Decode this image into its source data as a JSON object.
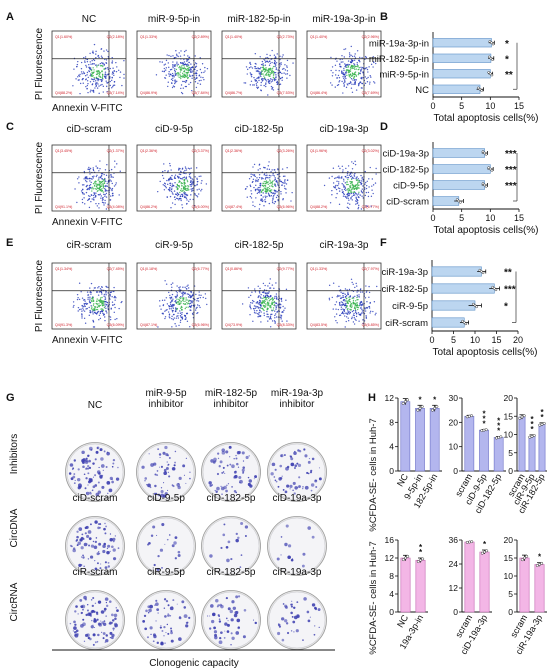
{
  "panels": {
    "A": {
      "letter": "A",
      "ylabel": "PI Fluorescence",
      "xlabel": "Annexin V-FITC",
      "plots": [
        {
          "title": "NC",
          "q": [
            "Q1(1.60%)",
            "Q2(2.18%)",
            "Q4(88.2%)",
            "Q3(7.14%)"
          ]
        },
        {
          "title": "miR-9-5p-in",
          "q": [
            "Q1(1.33%)",
            "Q2(2.89%)",
            "Q4(86.9%)",
            "Q3(7.84%)"
          ]
        },
        {
          "title": "miR-182-5p-in",
          "q": [
            "Q1(1.40%)",
            "Q2(2.73%)",
            "Q4(86.7%)",
            "Q3(7.53%)"
          ]
        },
        {
          "title": "miR-19a-3p-in",
          "q": [
            "Q1(1.40%)",
            "Q2(2.96%)",
            "Q4(86.4%)",
            "Q3(7.69%)"
          ]
        }
      ]
    },
    "C": {
      "letter": "C",
      "ylabel": "PI Fluorescence",
      "xlabel": "Annexin V-FITC",
      "plots": [
        {
          "title": "ciD-scram",
          "q": [
            "Q1(3.45%)",
            "Q2(1.37%)",
            "Q4(91.1%)",
            "Q3(4.08%)"
          ]
        },
        {
          "title": "ciD-9-5p",
          "q": [
            "Q1(2.36%)",
            "Q2(3.37%)",
            "Q4(86.2%)",
            "Q3(6.00%)"
          ]
        },
        {
          "title": "ciD-182-5p",
          "q": [
            "Q1(2.36%)",
            "Q2(3.26%)",
            "Q4(87.4%)",
            "Q3(6.96%)"
          ]
        },
        {
          "title": "ciD-19a-3p",
          "q": [
            "Q1(1.96%)",
            "Q2(3.02%)",
            "Q4(88.2%)",
            "Q3(6.77%)"
          ]
        }
      ]
    },
    "E": {
      "letter": "E",
      "ylabel": "PI Fluorescence",
      "xlabel": "Annexin V-FITC",
      "plots": [
        {
          "title": "ciR-scram",
          "q": [
            "Q1(1.34%)",
            "Q2(7.45%)",
            "Q4(91.3%)",
            "Q3(6.09%)"
          ]
        },
        {
          "title": "ciR-9-5p",
          "q": [
            "Q1(0.18%)",
            "Q2(6.77%)",
            "Q4(87.1%)",
            "Q3(6.96%)"
          ]
        },
        {
          "title": "ciR-182-5p",
          "q": [
            "Q1(0.86%)",
            "Q2(9.77%)",
            "Q4(73.9%)",
            "Q3(8.33%)"
          ]
        },
        {
          "title": "ciR-19a-3p",
          "q": [
            "Q1(1.33%)",
            "Q2(7.97%)",
            "Q4(83.5%)",
            "Q3(6.85%)"
          ]
        }
      ]
    },
    "G": {
      "letter": "G",
      "caption": "Clonogenic capacity",
      "rows": [
        "Inhibitors",
        "CircDNA",
        "CircRNA"
      ],
      "wells": [
        [
          "NC",
          "miR-9-5p\ninhibitor",
          "miR-182-5p\ninhibitor",
          "miR-19a-3p\ninhibitor"
        ],
        [
          "ciD-scram",
          "ciD-9-5p",
          "ciD-182-5p",
          "ciD-19a-3p"
        ],
        [
          "ciR-scram",
          "ciR-9-5p",
          "ciR-182-5p",
          "ciR-19a-3p"
        ]
      ],
      "density": [
        [
          0.7,
          0.45,
          0.5,
          0.45
        ],
        [
          0.6,
          0.15,
          0.12,
          0.1
        ],
        [
          0.8,
          0.45,
          0.4,
          0.3
        ]
      ]
    },
    "H": {
      "letter": "H",
      "ylabel_top": "%CFDA-SE- cells in Huh-7",
      "ylabel_bottom": "%CFDA-SE- cells in Huh-7"
    }
  },
  "colors": {
    "bar_blue": "#bcd6f0",
    "bar_blue_edge": "#5b8fc7",
    "purple": "#b3b6ee",
    "purple_edge": "#6d70c6",
    "pink": "#f3b6e6",
    "pink_edge": "#c46ab3",
    "flow_green": "#33b24a",
    "flow_blue": "#2236b8",
    "colony": "#3d3fb0"
  },
  "chart_data": [
    {
      "panel": "B",
      "type": "bar",
      "orientation": "horizontal",
      "categories": [
        "miR-19a-3p-in",
        "miR-182-5p-in",
        "miR-9-5p-in",
        "NC"
      ],
      "values": [
        10.2,
        10.1,
        10.0,
        8.2
      ],
      "errors": [
        0.5,
        0.5,
        0.4,
        0.6
      ],
      "significance": [
        "*",
        "*",
        "**",
        ""
      ],
      "xlabel": "Total apoptosis cells(%)",
      "xlim": [
        0,
        15
      ],
      "xticks": [
        0,
        5,
        10,
        15
      ]
    },
    {
      "panel": "D",
      "type": "bar",
      "orientation": "horizontal",
      "categories": [
        "ciD-19a-3p",
        "ciD-182-5p",
        "ciD-9-5p",
        "ciD-scram"
      ],
      "values": [
        9.0,
        10.0,
        9.0,
        4.5
      ],
      "errors": [
        0.5,
        0.5,
        0.5,
        0.8
      ],
      "significance": [
        "***",
        "***",
        "***",
        ""
      ],
      "xlabel": "Total apoptosis cells(%)",
      "xlim": [
        0,
        15
      ],
      "xticks": [
        0,
        5,
        10,
        15
      ]
    },
    {
      "panel": "F",
      "type": "bar",
      "orientation": "horizontal",
      "categories": [
        "ciR-19a-3p",
        "ciR-182-5p",
        "ciR-9-5p",
        "ciR-scram"
      ],
      "values": [
        11.5,
        14.5,
        10.0,
        7.5
      ],
      "errors": [
        1.0,
        1.2,
        1.5,
        1.0
      ],
      "significance": [
        "**",
        "***",
        "*",
        ""
      ],
      "xlabel": "Total apoptosis cells(%)",
      "xlim": [
        0,
        20
      ],
      "xticks": [
        0,
        5,
        10,
        15,
        20
      ]
    },
    {
      "panel": "H1",
      "type": "bar",
      "color": "purple",
      "categories": [
        "NC",
        "9-5p-in",
        "182-5p-in"
      ],
      "values": [
        11.4,
        10.3,
        10.3
      ],
      "errors": [
        0.5,
        0.5,
        0.5
      ],
      "significance": [
        "",
        "*",
        "*"
      ],
      "ylim": [
        0,
        12
      ],
      "yticks": [
        0,
        4,
        8,
        12
      ]
    },
    {
      "panel": "H2",
      "type": "bar",
      "color": "purple",
      "categories": [
        "scram",
        "ciD-9-5p",
        "ciD-182-5p"
      ],
      "values": [
        22.5,
        16.8,
        13.8
      ],
      "errors": [
        0.4,
        0.3,
        0.4
      ],
      "significance": [
        "",
        "***",
        "***"
      ],
      "ylim": [
        0,
        30
      ],
      "yticks": [
        0,
        10,
        20,
        30
      ]
    },
    {
      "panel": "H3",
      "type": "bar",
      "color": "purple",
      "categories": [
        "scram",
        "ciR-9-5p",
        "ciR-182-5p"
      ],
      "values": [
        14.8,
        9.5,
        12.8
      ],
      "errors": [
        0.6,
        0.4,
        0.4
      ],
      "significance": [
        "",
        "***",
        "**"
      ],
      "ylim": [
        0,
        20
      ],
      "yticks": [
        0,
        5,
        10,
        15,
        20
      ]
    },
    {
      "panel": "H4",
      "type": "bar",
      "color": "pink",
      "categories": [
        "NC",
        "19a-3p-in"
      ],
      "values": [
        12.0,
        11.5
      ],
      "errors": [
        0.6,
        0.5
      ],
      "significance": [
        "",
        "**"
      ],
      "ylim": [
        0,
        16
      ],
      "yticks": [
        0,
        4,
        8,
        12,
        16
      ]
    },
    {
      "panel": "H5",
      "type": "bar",
      "color": "pink",
      "categories": [
        "scram",
        "ciD-19a-3p"
      ],
      "values": [
        35.0,
        30.0
      ],
      "errors": [
        0.3,
        1.0
      ],
      "significance": [
        "",
        "*"
      ],
      "ylim": [
        0,
        36
      ],
      "yticks": [
        0,
        12,
        24,
        36
      ]
    },
    {
      "panel": "H6",
      "type": "bar",
      "color": "pink",
      "categories": [
        "scram",
        "ciR-19a-3p"
      ],
      "values": [
        15.0,
        13.2
      ],
      "errors": [
        0.8,
        0.5
      ],
      "significance": [
        "",
        "*"
      ],
      "ylim": [
        0,
        20
      ],
      "yticks": [
        0,
        5,
        10,
        15,
        20
      ]
    }
  ]
}
